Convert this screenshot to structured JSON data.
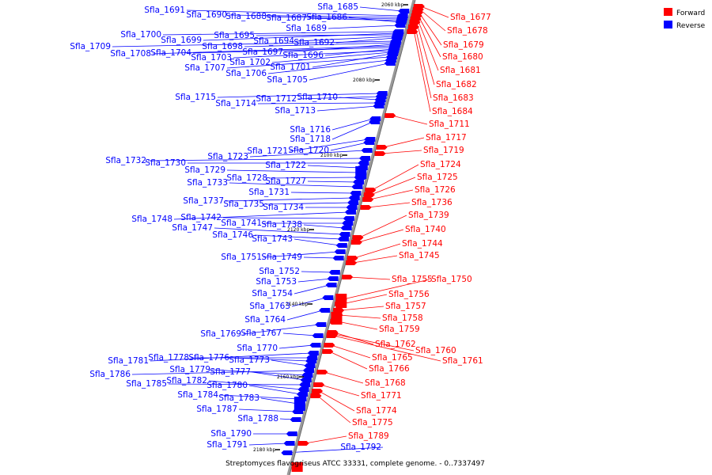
{
  "caption": "Streptomyces flavogriseus ATCC 33331, complete genome. - 0..7337497",
  "legend": [
    {
      "label": "Forward",
      "color": "#ff0000"
    },
    {
      "label": "Reverse",
      "color": "#0000ff"
    }
  ],
  "colors": {
    "forward": "#ff0000",
    "reverse": "#0000ff",
    "backbone": "#999999"
  },
  "scale_ticks": [
    "2060 kbp",
    "2080 kbp",
    "2100 kbp",
    "2120 kbp",
    "2140 kbp",
    "2160 kbp",
    "2180 kbp"
  ],
  "reverse_genes": [
    "Sfla_1685",
    "Sfla_1691",
    "Sfla_1690",
    "Sfla_1688",
    "Sfla_1687",
    "Sfla_1686",
    "Sfla_1689",
    "Sfla_1700",
    "Sfla_1699",
    "Sfla_1695",
    "Sfla_1694",
    "Sfla_1692",
    "Sfla_1709",
    "Sfla_1698",
    "Sfla_1697",
    "Sfla_1708",
    "Sfla_1704",
    "Sfla_1696",
    "Sfla_1703",
    "Sfla_1702",
    "Sfla_1701",
    "Sfla_1707",
    "Sfla_1706",
    "Sfla_1705",
    "Sfla_1715",
    "Sfla_1712",
    "Sfla_1710",
    "Sfla_1714",
    "Sfla_1713",
    "Sfla_1716",
    "Sfla_1718",
    "Sfla_1721",
    "Sfla_1720",
    "Sfla_1723",
    "Sfla_1732",
    "Sfla_1730",
    "Sfla_1722",
    "Sfla_1729",
    "Sfla_1728",
    "Sfla_1727",
    "Sfla_1733",
    "Sfla_1731",
    "Sfla_1737",
    "Sfla_1735",
    "Sfla_1734",
    "Sfla_1748",
    "Sfla_1742",
    "Sfla_1741",
    "Sfla_1738",
    "Sfla_1747",
    "Sfla_1746",
    "Sfla_1743",
    "Sfla_1751",
    "Sfla_1749",
    "Sfla_1752",
    "Sfla_1753",
    "Sfla_1754",
    "Sfla_1763",
    "Sfla_1764",
    "Sfla_1769",
    "Sfla_1767",
    "Sfla_1770",
    "Sfla_1781",
    "Sfla_1778",
    "Sfla_1776",
    "Sfla_1773",
    "Sfla_1786",
    "Sfla_1779",
    "Sfla_1777",
    "Sfla_1785",
    "Sfla_1782",
    "Sfla_1780",
    "Sfla_1784",
    "Sfla_1783",
    "Sfla_1787",
    "Sfla_1788",
    "Sfla_1790",
    "Sfla_1791",
    "Sfla_1792"
  ],
  "forward_genes": [
    "Sfla_1677",
    "Sfla_1678",
    "Sfla_1679",
    "Sfla_1680",
    "Sfla_1681",
    "Sfla_1682",
    "Sfla_1683",
    "Sfla_1684",
    "Sfla_1711",
    "Sfla_1717",
    "Sfla_1719",
    "Sfla_1724",
    "Sfla_1725",
    "Sfla_1726",
    "Sfla_1736",
    "Sfla_1739",
    "Sfla_1740",
    "Sfla_1744",
    "Sfla_1745",
    "Sfla_1755",
    "Sfla_1750",
    "Sfla_1756",
    "Sfla_1757",
    "Sfla_1758",
    "Sfla_1759",
    "Sfla_1762",
    "Sfla_1760",
    "Sfla_1761",
    "Sfla_1765",
    "Sfla_1766",
    "Sfla_1768",
    "Sfla_1771",
    "Sfla_1774",
    "Sfla_1775",
    "Sfla_1789"
  ]
}
